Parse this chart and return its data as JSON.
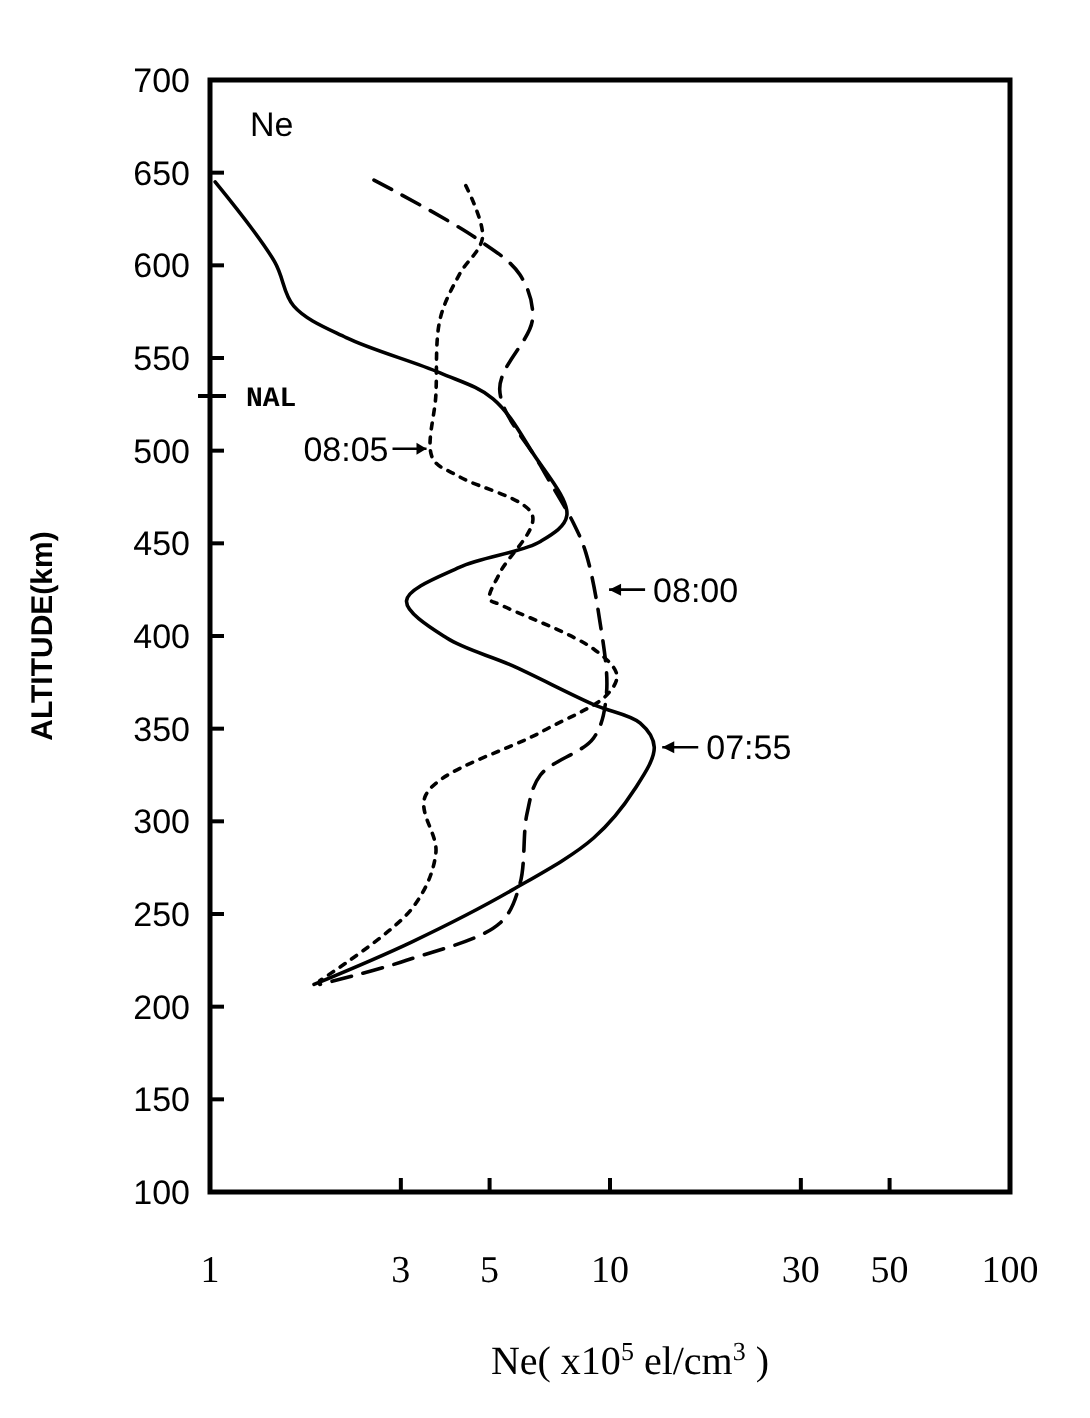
{
  "chart_data": {
    "type": "line",
    "xlabel": "Ne( x10$^{5}$ el/cm$^{3}$ )",
    "ylabel": "ALTITUDE(km)",
    "log": "x",
    "xlim": [
      1,
      100
    ],
    "xticks": [
      1,
      3,
      5,
      10,
      30,
      50,
      100
    ],
    "ylim": [
      100,
      700
    ],
    "yticks": [
      100,
      150,
      200,
      250,
      300,
      350,
      400,
      450,
      500,
      550,
      600,
      650,
      700
    ],
    "grid": false,
    "marker": "none",
    "series": [
      {
        "color": "#000000",
        "line_style": "solid",
        "x": [
          1.03,
          1.45,
          1.62,
          2.19,
          3.76,
          5.1,
          6.4,
          7.8,
          6.7,
          4.2,
          3.1,
          3.9,
          5.7,
          9.1,
          11.9,
          12.9,
          11.5,
          9.1,
          5.7,
          3.2,
          1.82
        ],
        "values": [
          645,
          602,
          578,
          561,
          542,
          528,
          499,
          465,
          451,
          437,
          419,
          399,
          384,
          363,
          353,
          340,
          317,
          291,
          263,
          235,
          212
        ]
      },
      {
        "color": "#000000",
        "line_style": "dashed",
        "x": [
          2.57,
          4.6,
          5.95,
          6.4,
          5.3,
          6.7,
          8.1,
          8.7,
          9.4,
          9.8,
          9.1,
          6.7,
          6.2,
          5.95,
          5.3,
          3.1,
          1.88
        ],
        "values": [
          646,
          615,
          595,
          571,
          533,
          492,
          461,
          445,
          410,
          369,
          345,
          325,
          304,
          266,
          245,
          225,
          212
        ]
      },
      {
        "color": "#000000",
        "line_style": "dotted",
        "x": [
          4.36,
          4.8,
          4.2,
          3.76,
          3.67,
          3.6,
          4.2,
          6.4,
          5.3,
          5.0,
          5.3,
          9.1,
          10.4,
          9.8,
          6.7,
          3.46,
          3.67,
          3.2,
          1.88
        ],
        "values": [
          643,
          615,
          595,
          571,
          530,
          496,
          486,
          465,
          434,
          420,
          417,
          393,
          379,
          368,
          348,
          314,
          283,
          253,
          214
        ]
      }
    ],
    "annotations": [
      "Ne",
      "NAL",
      {
        "text": "08:05",
        "x": 3.6,
        "y": 501
      },
      {
        "text": "08:00",
        "x": 9.5,
        "y": 425
      },
      {
        "text": "07:55",
        "x": 12.9,
        "y": 340
      }
    ]
  }
}
